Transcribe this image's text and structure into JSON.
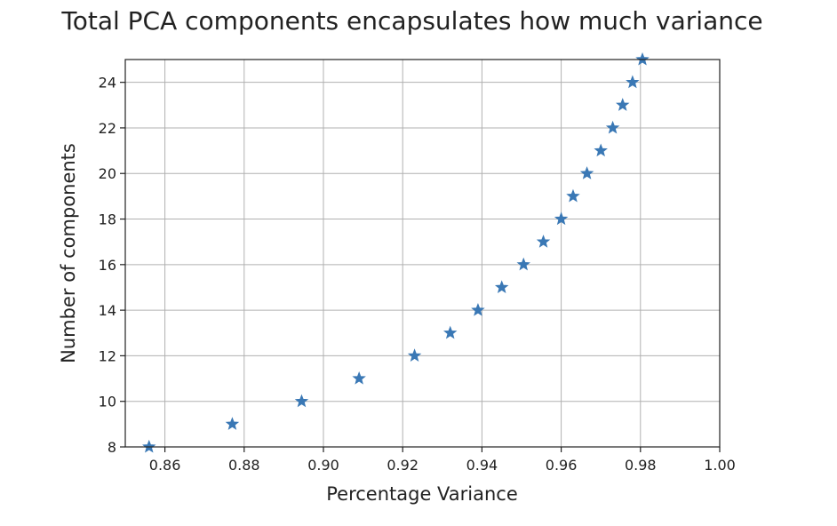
{
  "chart_data": {
    "type": "scatter",
    "title": "Total PCA components encapsulates how much variance",
    "xlabel": "Percentage Variance",
    "ylabel": "Number of components",
    "xlim": [
      0.85,
      1.0
    ],
    "ylim": [
      8,
      25
    ],
    "xticks": [
      0.86,
      0.88,
      0.9,
      0.92,
      0.94,
      0.96,
      0.98,
      1.0
    ],
    "xtick_labels": [
      "0.86",
      "0.88",
      "0.90",
      "0.92",
      "0.94",
      "0.96",
      "0.98",
      "1.00"
    ],
    "yticks": [
      8,
      10,
      12,
      14,
      16,
      18,
      20,
      22,
      24
    ],
    "ytick_labels": [
      "8",
      "10",
      "12",
      "14",
      "16",
      "18",
      "20",
      "22",
      "24"
    ],
    "grid": true,
    "marker": "star",
    "color": "#3a78b5",
    "series": [
      {
        "x": [
          0.856,
          0.877,
          0.8945,
          0.909,
          0.923,
          0.932,
          0.939,
          0.945,
          0.9505,
          0.9555,
          0.96,
          0.963,
          0.9665,
          0.97,
          0.973,
          0.9755,
          0.978,
          0.9805
        ],
        "y": [
          8,
          9,
          10,
          11,
          12,
          13,
          14,
          15,
          16,
          17,
          18,
          19,
          20,
          21,
          22,
          23,
          24,
          25
        ]
      }
    ]
  }
}
